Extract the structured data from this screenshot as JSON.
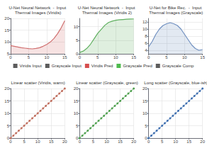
{
  "chart_data": [
    {
      "type": "area",
      "title": "U-Net Neural Network  -  Input Thermal Images (Viridis)",
      "x": [
        0,
        1,
        2,
        3,
        4,
        5,
        6,
        7,
        8,
        9,
        10,
        11,
        12,
        13,
        14,
        15
      ],
      "values": [
        8.5,
        8.2,
        7.9,
        7.6,
        7.4,
        7.2,
        7.1,
        7.3,
        7.6,
        8.2,
        9.0,
        10.0,
        11.5,
        13.5,
        16.0,
        19.0
      ],
      "color": "#d07070",
      "xlim": [
        0,
        15
      ],
      "ylim": [
        5,
        20
      ],
      "xticks": [
        0,
        5,
        10,
        15
      ],
      "yticks": [
        5,
        10,
        15,
        20
      ],
      "grid": true
    },
    {
      "type": "area",
      "title": "U-Net Neural Network  -  Input Thermal Images (Viridis 2)",
      "x": [
        0,
        1,
        2,
        3,
        4,
        5,
        6,
        7,
        8,
        9,
        10,
        11,
        12,
        13,
        14,
        15
      ],
      "values": [
        0.5,
        1.0,
        2.0,
        3.5,
        5.5,
        7.5,
        9.0,
        10.5,
        11.5,
        12.0,
        12.3,
        12.5,
        12.6,
        12.7,
        12.75,
        12.8
      ],
      "color": "#60b060",
      "xlim": [
        0,
        15
      ],
      "ylim": [
        0,
        13
      ],
      "xticks": [
        0,
        5,
        10,
        15
      ],
      "yticks": [
        0,
        5,
        10
      ],
      "grid": true
    },
    {
      "type": "area",
      "title": "U-Net for Bike Rec.  -  Input Thermal Images (Grayscale)",
      "x": [
        0,
        1,
        2,
        3,
        4,
        5,
        6,
        7,
        8,
        9,
        10,
        11,
        12,
        13,
        14,
        15
      ],
      "values": [
        5.0,
        6.5,
        8.5,
        10.0,
        11.0,
        11.5,
        11.8,
        11.5,
        11.0,
        10.0,
        8.5,
        7.0,
        5.5,
        4.5,
        4.0,
        4.2
      ],
      "color": "#7090c0",
      "xlim": [
        0,
        15
      ],
      "ylim": [
        3,
        13
      ],
      "xticks": [
        0,
        5,
        10,
        15
      ],
      "yticks": [
        4,
        6,
        8,
        10,
        12
      ],
      "grid": true
    },
    {
      "type": "legend",
      "series": [
        {
          "name": "Viridis Input",
          "color": "#333333"
        },
        {
          "name": "Grayscale Input",
          "color": "#333333"
        },
        {
          "name": "Viridis Pred",
          "color": "#cc2222"
        },
        {
          "name": "Grayscale Pred",
          "color": "#22aa22"
        },
        {
          "name": "Grayscale Comp",
          "color": "#333333"
        }
      ]
    },
    {
      "type": "scatter",
      "title": "Linear scatter (Viridis, warm)",
      "x": [
        0,
        1,
        2,
        3,
        4,
        5,
        6,
        7,
        8,
        9,
        10,
        11,
        12,
        13,
        14,
        15,
        16,
        17,
        18,
        19,
        20
      ],
      "values": [
        0,
        1,
        2,
        3,
        4,
        5,
        6,
        7,
        8,
        9,
        10,
        11,
        12,
        13,
        14,
        15,
        16,
        17,
        18,
        19,
        20
      ],
      "color": "#c07060",
      "marker": "o",
      "line_style": "solid",
      "xlim": [
        0,
        20
      ],
      "ylim": [
        0,
        20
      ],
      "xticks": [
        0,
        5,
        10,
        15,
        20
      ],
      "yticks": [
        0,
        5,
        10,
        15,
        20
      ],
      "grid": true
    },
    {
      "type": "scatter",
      "title": "Linear scatter (Grayscale, green)",
      "x": [
        0,
        1,
        2,
        3,
        4,
        5,
        6,
        7,
        8,
        9,
        10,
        11,
        12,
        13,
        14,
        15,
        16,
        17,
        18,
        19,
        20
      ],
      "values": [
        0,
        1,
        2,
        3,
        4,
        5,
        6,
        7,
        8,
        9,
        10,
        11,
        12,
        13,
        14,
        15,
        16,
        17,
        18,
        19,
        20
      ],
      "color": "#50a050",
      "marker": "o",
      "line_style": "solid",
      "xlim": [
        0,
        20
      ],
      "ylim": [
        0,
        20
      ],
      "xticks": [
        0,
        5,
        10,
        15,
        20
      ],
      "yticks": [
        0,
        5,
        10,
        15,
        20
      ],
      "grid": true
    },
    {
      "type": "scatter",
      "title": "Long scatter (Grayscale, blue-ish)",
      "x": [
        0,
        1,
        2,
        3,
        4,
        5,
        6,
        7,
        8,
        9,
        10,
        11,
        12,
        13,
        14,
        15,
        16,
        17,
        18,
        19,
        20
      ],
      "values": [
        0,
        1,
        2,
        3,
        4,
        5,
        6,
        7,
        8,
        9,
        10,
        11,
        12,
        13,
        14,
        15,
        16,
        17,
        18,
        19,
        20
      ],
      "color": "#4070b0",
      "marker": "o",
      "line_style": "solid",
      "xlim": [
        0,
        20
      ],
      "ylim": [
        0,
        20
      ],
      "xticks": [
        0,
        5,
        10,
        15,
        20
      ],
      "yticks": [
        0,
        5,
        10,
        15,
        20
      ],
      "grid": true
    }
  ]
}
